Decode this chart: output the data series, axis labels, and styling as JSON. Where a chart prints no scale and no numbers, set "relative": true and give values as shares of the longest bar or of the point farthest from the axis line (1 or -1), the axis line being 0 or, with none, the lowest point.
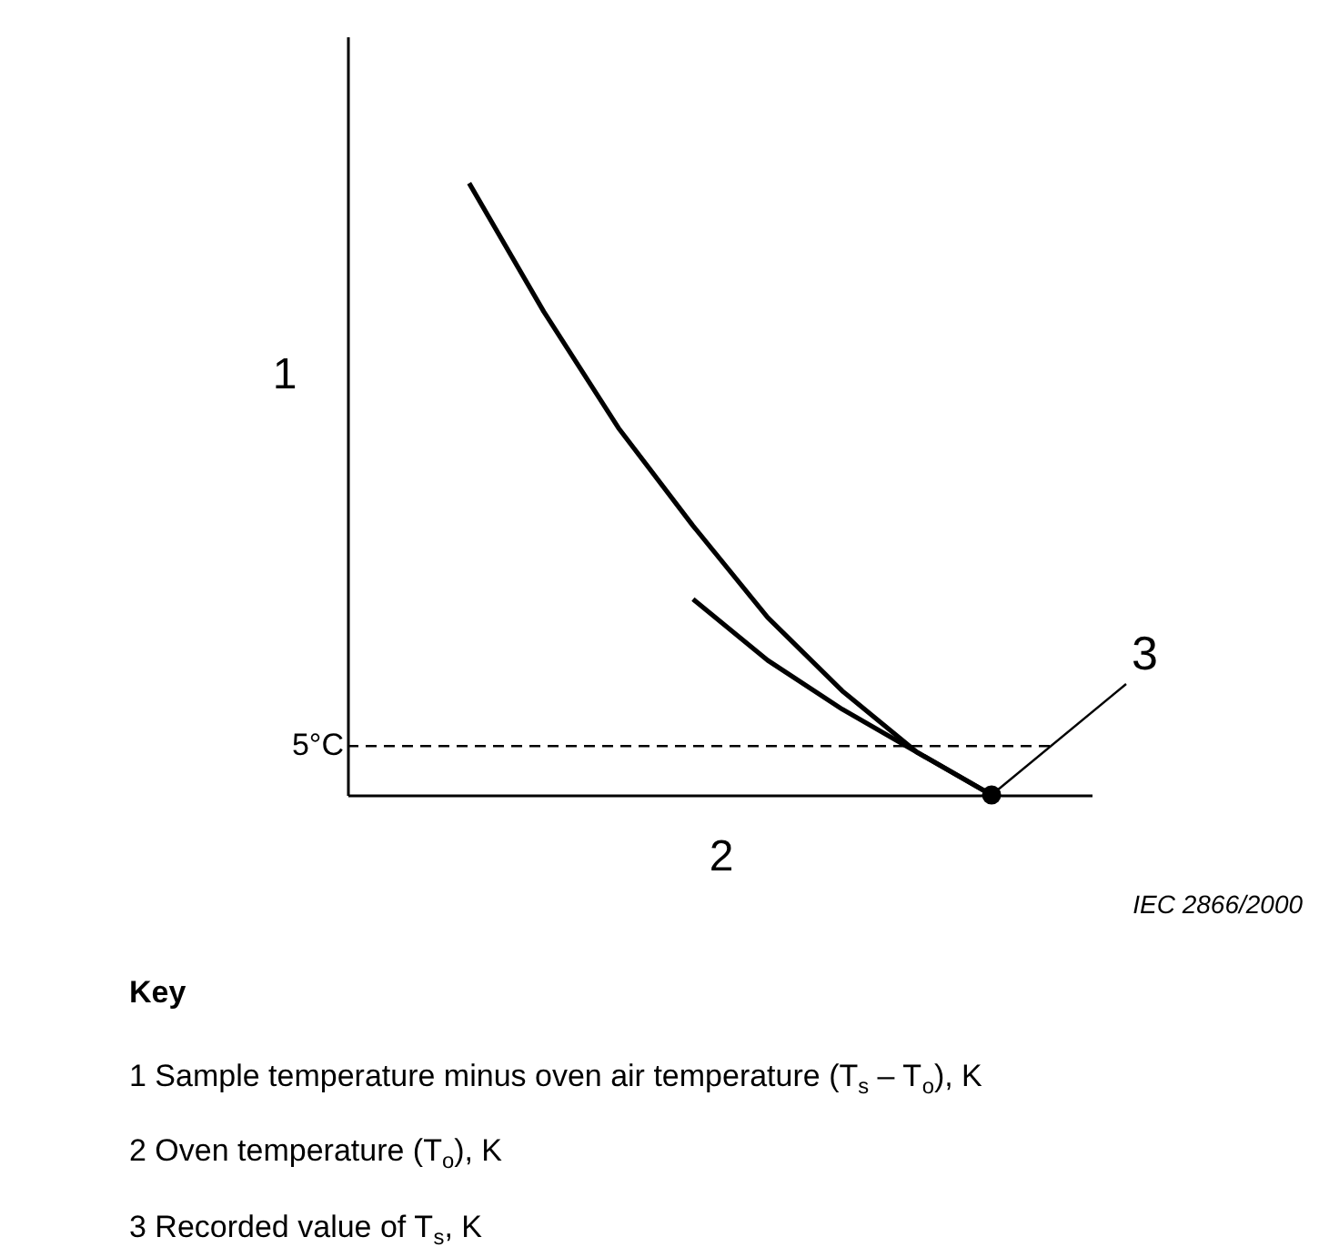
{
  "chart_data": {
    "type": "line",
    "relative": true,
    "xlabel": "2",
    "ylabel": "1",
    "categories": [
      null,
      null,
      null,
      null,
      null,
      null,
      null,
      null
    ],
    "series": [
      {
        "color": "#000000",
        "values": [
          1,
          0.79,
          0.6,
          0.44,
          0.29,
          0.17,
          0.07,
          0
        ]
      },
      {
        "color": "#000000",
        "values": [
          null,
          null,
          null,
          0.32,
          0.22,
          0.14,
          0.07,
          0
        ]
      }
    ],
    "ref_lines": [
      {
        "axis": "y",
        "value": 0.08,
        "label": "5°C",
        "line_style": "dashed",
        "color": "#000000"
      }
    ],
    "annotations": [
      "3",
      "IEC 2866/2000",
      "Key",
      "1   Sample temperature minus oven air temperature (T$_{s}$ – T$_{o}$), K",
      "2   Oven temperature (T$_{o}$), K",
      "3   Recorded value of T$_{s}$, K"
    ],
    "grid": false,
    "tick_labels": false,
    "marker": "none",
    "line_style": "solid"
  }
}
